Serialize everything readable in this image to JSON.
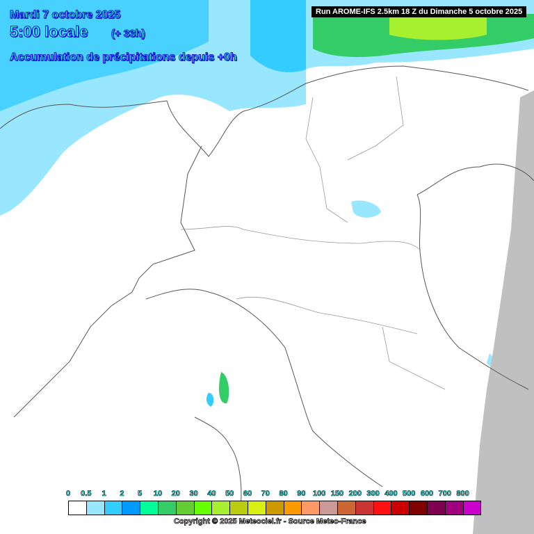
{
  "header": {
    "date": "Mardi 7 octobre 2025",
    "time": "5:00 locale",
    "offset": "(+ 33h)",
    "product": "Accumulation de précipitations depuis +0h"
  },
  "run_label": "Run AROME-IFS 2.5km 18 Z du Dimanche 5 octobre 2025",
  "legend": {
    "labels": [
      "0",
      "0.5",
      "1",
      "2",
      "5",
      "10",
      "20",
      "30",
      "40",
      "50",
      "60",
      "70",
      "80",
      "90",
      "100",
      "150",
      "200",
      "300",
      "400",
      "500",
      "600",
      "700",
      "800"
    ],
    "colors": [
      "#ffffff",
      "#99e6ff",
      "#33ccff",
      "#0099ff",
      "#00ff99",
      "#33cc66",
      "#66cc33",
      "#66ff00",
      "#a6f030",
      "#bbcc11",
      "#d9ee11",
      "#cc9900",
      "#ff9900",
      "#ff9966",
      "#cc9999",
      "#cc6633",
      "#cc3333",
      "#ff1111",
      "#cc0000",
      "#800000",
      "#800050",
      "#a00080",
      "#cc00cc"
    ]
  },
  "copyright": "Copyright © 2025 Meteociel.fr - Source Meteo-France",
  "colors": {
    "outside_domain": "#c0c0c0",
    "border": "#555555"
  }
}
